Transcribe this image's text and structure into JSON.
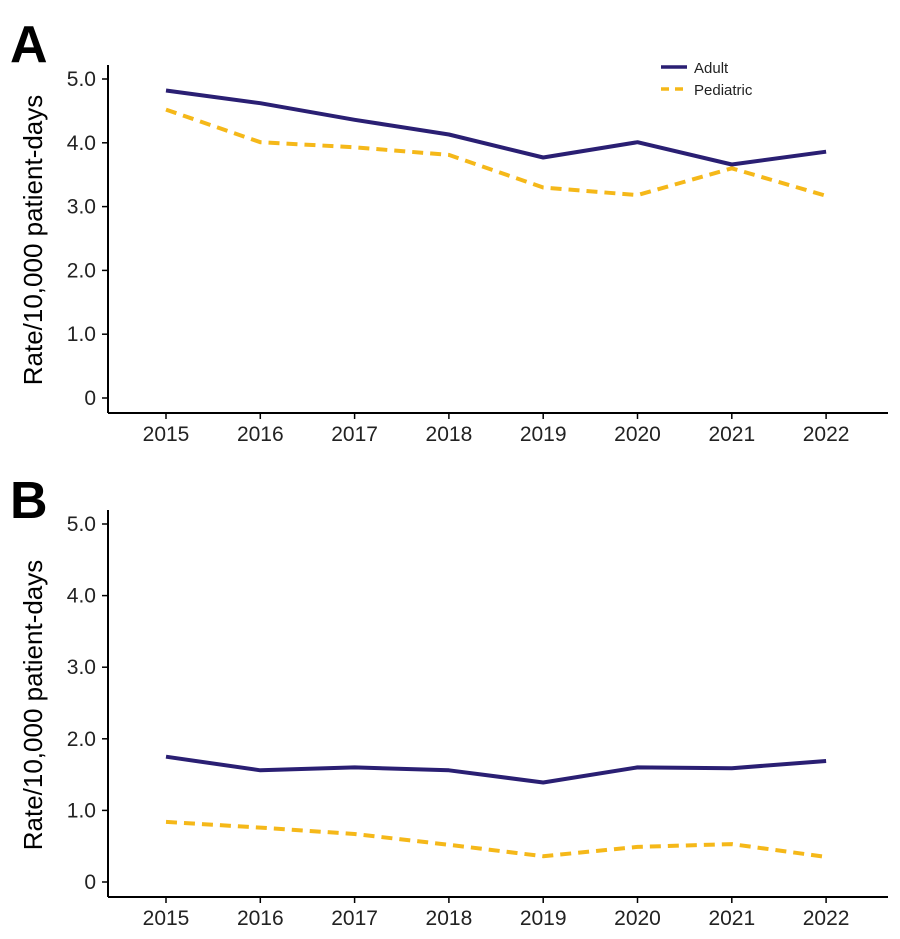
{
  "chart_data": [
    {
      "type": "line",
      "panel": "A",
      "x": [
        "2015",
        "2016",
        "2017",
        "2018",
        "2019",
        "2020",
        "2021",
        "2022"
      ],
      "series": [
        {
          "name": "Adult",
          "color": "#2a1f73",
          "style": "solid",
          "values": [
            4.82,
            4.62,
            4.36,
            4.13,
            3.77,
            4.01,
            3.66,
            3.86
          ]
        },
        {
          "name": "Pediatric",
          "color": "#f5b819",
          "style": "dashed",
          "values": [
            4.52,
            4.01,
            3.93,
            3.81,
            3.3,
            3.18,
            3.6,
            3.17
          ]
        }
      ],
      "ylabel": "Rate/10,000 patient-days",
      "xlabel": "",
      "ylim": [
        0,
        5
      ],
      "yticks": [
        0,
        1,
        2,
        3,
        4,
        5
      ],
      "ytick_labels": [
        "0",
        "1.0",
        "2.0",
        "3.0",
        "4.0",
        "5.0"
      ],
      "legend": {
        "position": "top-right",
        "entries": [
          "Adult",
          "Pediatric"
        ]
      },
      "grid": false
    },
    {
      "type": "line",
      "panel": "B",
      "x": [
        "2015",
        "2016",
        "2017",
        "2018",
        "2019",
        "2020",
        "2021",
        "2022"
      ],
      "series": [
        {
          "name": "Adult",
          "color": "#2a1f73",
          "style": "solid",
          "values": [
            1.75,
            1.56,
            1.6,
            1.56,
            1.39,
            1.6,
            1.59,
            1.69
          ]
        },
        {
          "name": "Pediatric",
          "color": "#f5b819",
          "style": "dashed",
          "values": [
            0.84,
            0.76,
            0.67,
            0.52,
            0.36,
            0.49,
            0.53,
            0.35
          ]
        }
      ],
      "ylabel": "Rate/10,000 patient-days",
      "xlabel": "",
      "ylim": [
        0,
        5
      ],
      "yticks": [
        0,
        1,
        2,
        3,
        4,
        5
      ],
      "ytick_labels": [
        "0",
        "1.0",
        "2.0",
        "3.0",
        "4.0",
        "5.0"
      ],
      "grid": false
    }
  ]
}
